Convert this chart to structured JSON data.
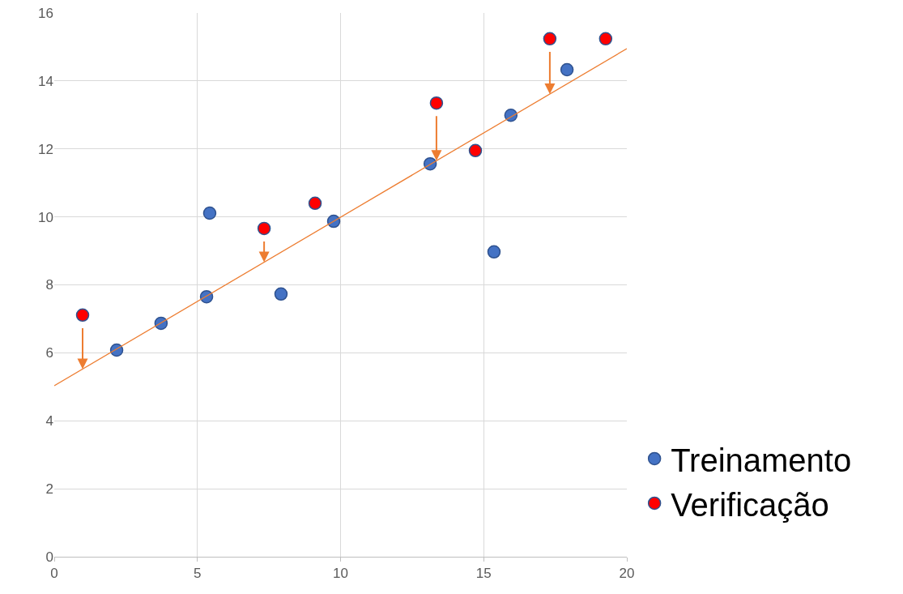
{
  "chart_data": {
    "type": "scatter",
    "xlim": [
      0,
      20
    ],
    "ylim": [
      0,
      16
    ],
    "xticks": [
      0,
      5,
      10,
      15,
      20
    ],
    "yticks": [
      0,
      2,
      4,
      6,
      8,
      10,
      12,
      14,
      16
    ],
    "grid": true,
    "legend": "bottom right",
    "marker": "circle",
    "series": [
      {
        "name": "Treinamento",
        "color": "#4472c4",
        "x": [
          2.18,
          3.73,
          5.32,
          5.43,
          7.92,
          9.76,
          13.13,
          15.36,
          15.95,
          17.91
        ],
        "values": [
          6.08,
          6.87,
          7.65,
          10.11,
          7.73,
          9.87,
          11.56,
          8.97,
          12.99,
          14.33
        ]
      },
      {
        "name": "Verificação",
        "color": "#ff0000",
        "x": [
          0.99,
          7.33,
          9.11,
          13.35,
          14.71,
          17.31,
          19.26
        ],
        "values": [
          7.11,
          9.66,
          10.4,
          13.35,
          11.95,
          15.24,
          15.24
        ]
      },
      {
        "type": "line",
        "color": "#ed7d31",
        "marker": "none",
        "x": [
          0,
          20
        ],
        "values": [
          5.03,
          14.95
        ]
      }
    ]
  }
}
